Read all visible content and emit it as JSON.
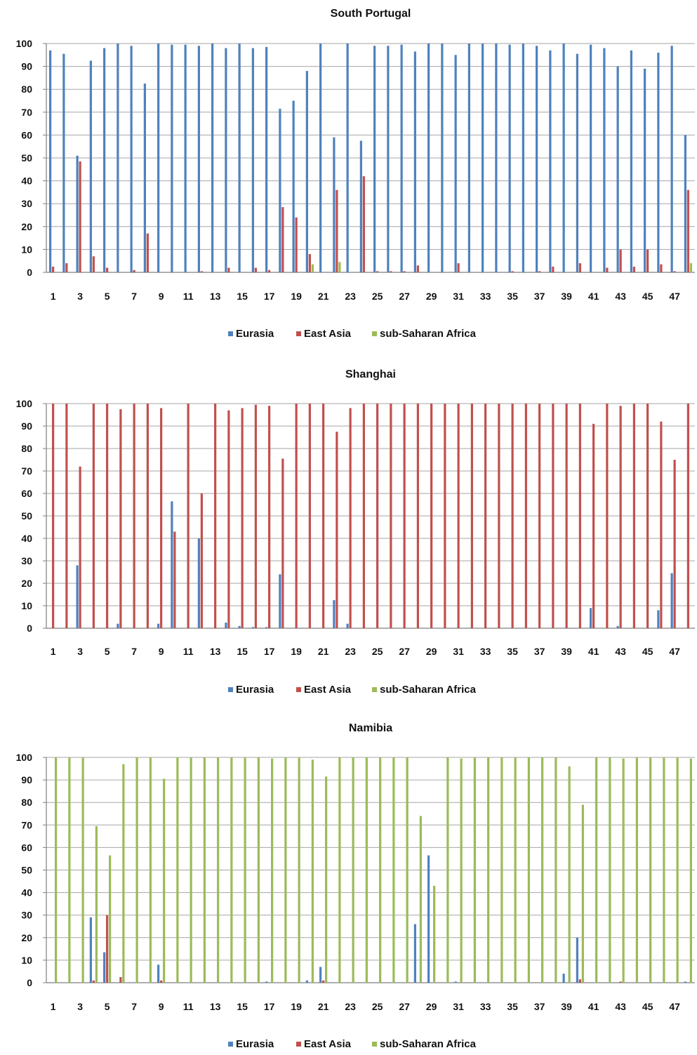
{
  "chart_data": [
    {
      "type": "bar",
      "title": "South Portugal",
      "xlabel": "",
      "ylabel": "",
      "ylim": [
        0,
        100
      ],
      "yticks": [
        0,
        10,
        20,
        30,
        40,
        50,
        60,
        70,
        80,
        90,
        100
      ],
      "categories": [
        "1",
        "2",
        "3",
        "4",
        "5",
        "6",
        "7",
        "8",
        "9",
        "10",
        "11",
        "12",
        "13",
        "14",
        "15",
        "16",
        "17",
        "18",
        "19",
        "20",
        "21",
        "22",
        "23",
        "24",
        "25",
        "26",
        "27",
        "28",
        "29",
        "30",
        "31",
        "32",
        "33",
        "34",
        "35",
        "36",
        "37",
        "38",
        "39",
        "40",
        "41",
        "42",
        "43",
        "44",
        "45",
        "46",
        "47",
        "48"
      ],
      "xtick_labels": [
        "1",
        "3",
        "5",
        "7",
        "9",
        "11",
        "13",
        "15",
        "17",
        "19",
        "21",
        "23",
        "25",
        "27",
        "29",
        "31",
        "33",
        "35",
        "37",
        "39",
        "41",
        "43",
        "45",
        "47"
      ],
      "grid": true,
      "legend_position": "bottom",
      "series": [
        {
          "name": "Eurasia",
          "color": "#4f81bd",
          "values": [
            97,
            95.5,
            51,
            92.5,
            98,
            100,
            99,
            82.5,
            100,
            99.5,
            99.5,
            99,
            100,
            98,
            100,
            98,
            98.5,
            71.5,
            75,
            88,
            100,
            59,
            100,
            57.5,
            99,
            99,
            99.5,
            96.5,
            100,
            100,
            95,
            100,
            100,
            100,
            99.5,
            100,
            99,
            97,
            100,
            95.5,
            99.5,
            98,
            90,
            97,
            89,
            96,
            99,
            60
          ]
        },
        {
          "name": "East Asia",
          "color": "#c0504d",
          "values": [
            2.5,
            4,
            48.5,
            7,
            2,
            0,
            1,
            17,
            0,
            0,
            0,
            0.5,
            0,
            2,
            0,
            2,
            1,
            28.5,
            24,
            8,
            0,
            36,
            0,
            42,
            0.5,
            0.5,
            0.5,
            3,
            0,
            0,
            4,
            0,
            0,
            0,
            0.5,
            0,
            0.5,
            2.5,
            0,
            4,
            0,
            2,
            10,
            2.5,
            10,
            3.5,
            0.5,
            36
          ]
        },
        {
          "name": "sub-Saharan Africa",
          "color": "#9bbb59",
          "values": [
            0,
            0,
            0,
            0,
            0,
            0,
            0,
            0,
            0,
            0,
            0,
            0,
            0,
            0,
            0,
            0,
            0,
            0,
            0,
            3.5,
            0,
            4.5,
            0,
            0,
            0,
            0,
            0,
            0,
            0,
            0,
            0,
            0,
            0,
            0,
            0,
            0,
            0,
            0,
            0,
            0,
            0,
            0,
            0,
            0,
            0,
            0,
            0,
            4
          ]
        }
      ]
    },
    {
      "type": "bar",
      "title": "Shanghai",
      "xlabel": "",
      "ylabel": "",
      "ylim": [
        0,
        100
      ],
      "yticks": [
        0,
        10,
        20,
        30,
        40,
        50,
        60,
        70,
        80,
        90,
        100
      ],
      "categories": [
        "1",
        "2",
        "3",
        "4",
        "5",
        "6",
        "7",
        "8",
        "9",
        "10",
        "11",
        "12",
        "13",
        "14",
        "15",
        "16",
        "17",
        "18",
        "19",
        "20",
        "21",
        "22",
        "23",
        "24",
        "25",
        "26",
        "27",
        "28",
        "29",
        "30",
        "31",
        "32",
        "33",
        "34",
        "35",
        "36",
        "37",
        "38",
        "39",
        "40",
        "41",
        "42",
        "43",
        "44",
        "45",
        "46",
        "47",
        "48"
      ],
      "xtick_labels": [
        "1",
        "3",
        "5",
        "7",
        "9",
        "11",
        "13",
        "15",
        "17",
        "19",
        "21",
        "23",
        "25",
        "27",
        "29",
        "31",
        "33",
        "35",
        "37",
        "39",
        "41",
        "43",
        "45",
        "47"
      ],
      "grid": true,
      "legend_position": "bottom",
      "series": [
        {
          "name": "Eurasia",
          "color": "#4f81bd",
          "values": [
            0,
            0,
            28,
            0,
            0,
            2,
            0,
            0,
            2,
            56.5,
            0,
            40,
            0,
            2.5,
            1,
            0.5,
            0.5,
            24,
            0,
            0,
            0,
            12.5,
            2,
            0,
            0,
            0,
            0,
            0,
            0,
            0,
            0,
            0,
            0,
            0,
            0,
            0,
            0,
            0,
            0,
            0,
            9,
            0,
            1,
            0,
            0,
            8,
            24.5,
            0
          ]
        },
        {
          "name": "East Asia",
          "color": "#c0504d",
          "values": [
            100,
            100,
            72,
            100,
            100,
            97.5,
            100,
            100,
            98,
            43,
            100,
            60,
            100,
            97,
            98,
            99.5,
            99,
            75.5,
            100,
            100,
            100,
            87.5,
            98,
            100,
            100,
            100,
            100,
            100,
            100,
            100,
            100,
            100,
            100,
            100,
            100,
            100,
            100,
            100,
            100,
            100,
            91,
            100,
            99,
            100,
            100,
            92,
            75,
            100
          ]
        },
        {
          "name": "sub-Saharan Africa",
          "color": "#9bbb59",
          "values": [
            0,
            0,
            0,
            0,
            0,
            0,
            0,
            0,
            0,
            0,
            0,
            0,
            0,
            0,
            0,
            0,
            0,
            0,
            0,
            0,
            0,
            0,
            0,
            0,
            0,
            0,
            0,
            0,
            0,
            0,
            0,
            0,
            0,
            0,
            0,
            0,
            0,
            0,
            0,
            0,
            0,
            0,
            0,
            0,
            0,
            0,
            0,
            0
          ]
        }
      ]
    },
    {
      "type": "bar",
      "title": "Namibia",
      "xlabel": "",
      "ylabel": "",
      "ylim": [
        0,
        100
      ],
      "yticks": [
        0,
        10,
        20,
        30,
        40,
        50,
        60,
        70,
        80,
        90,
        100
      ],
      "categories": [
        "1",
        "2",
        "3",
        "4",
        "5",
        "6",
        "7",
        "8",
        "9",
        "10",
        "11",
        "12",
        "13",
        "14",
        "15",
        "16",
        "17",
        "18",
        "19",
        "20",
        "21",
        "22",
        "23",
        "24",
        "25",
        "26",
        "27",
        "28",
        "29",
        "30",
        "31",
        "32",
        "33",
        "34",
        "35",
        "36",
        "37",
        "38",
        "39",
        "40",
        "41",
        "42",
        "43",
        "44",
        "45",
        "46",
        "47",
        "48"
      ],
      "xtick_labels": [
        "1",
        "3",
        "5",
        "7",
        "9",
        "11",
        "13",
        "15",
        "17",
        "19",
        "21",
        "23",
        "25",
        "27",
        "29",
        "31",
        "33",
        "35",
        "37",
        "39",
        "41",
        "43",
        "45",
        "47"
      ],
      "grid": true,
      "legend_position": "bottom",
      "series": [
        {
          "name": "Eurasia",
          "color": "#4f81bd",
          "values": [
            0,
            0,
            0,
            29,
            13.5,
            0,
            0,
            0,
            8,
            0,
            0,
            0,
            0,
            0,
            0,
            0,
            0.5,
            0,
            0,
            1,
            7,
            0,
            0,
            0,
            0,
            0,
            0,
            26,
            56.5,
            0,
            0.5,
            0,
            0,
            0,
            0,
            0,
            0,
            0,
            4,
            20,
            0,
            0,
            0,
            0,
            0,
            0,
            0,
            0.5
          ]
        },
        {
          "name": "East Asia",
          "color": "#c0504d",
          "values": [
            0,
            0,
            0,
            1,
            30,
            2.5,
            0,
            0,
            1,
            0,
            0,
            0,
            0,
            0,
            0,
            0,
            0,
            0,
            0,
            0,
            1,
            0,
            0,
            0,
            0,
            0,
            0,
            0,
            0,
            0,
            0,
            0,
            0,
            0,
            0,
            0,
            0,
            0,
            0,
            1.5,
            0,
            0,
            0.5,
            0,
            0,
            0,
            0,
            0
          ]
        },
        {
          "name": "sub-Saharan Africa",
          "color": "#9bbb59",
          "values": [
            100,
            100,
            100,
            69.5,
            56.5,
            97,
            100,
            100,
            90.5,
            100,
            100,
            100,
            100,
            100,
            100,
            100,
            99.5,
            100,
            100,
            99,
            91.5,
            100,
            100,
            100,
            100,
            100,
            100,
            74,
            43,
            100,
            99.5,
            100,
            100,
            100,
            100,
            100,
            100,
            100,
            96,
            79,
            100,
            100,
            99.5,
            100,
            100,
            100,
            100,
            99.5
          ]
        }
      ]
    }
  ]
}
